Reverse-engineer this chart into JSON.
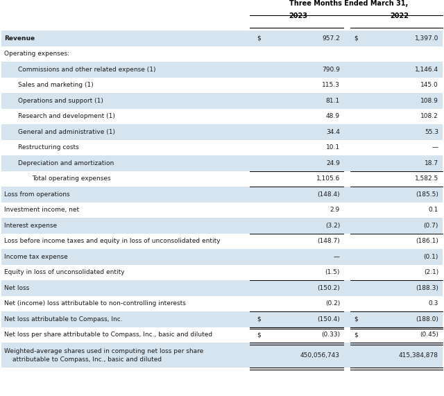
{
  "title": "Three Months Ended March 31,",
  "rows": [
    {
      "label": "Revenue",
      "val2023": "957.2",
      "val2022": "1,397.0",
      "indent": 0,
      "bold": true,
      "bg": "light",
      "dollar_sign": true,
      "bottom_border": false,
      "double_border": false,
      "single_border": false
    },
    {
      "label": "Operating expenses:",
      "val2023": "",
      "val2022": "",
      "indent": 0,
      "bold": false,
      "bg": "white",
      "dollar_sign": false,
      "bottom_border": false,
      "double_border": false,
      "single_border": false
    },
    {
      "label": "Commissions and other related expense (1)",
      "val2023": "790.9",
      "val2022": "1,146.4",
      "indent": 1,
      "bold": false,
      "bg": "light",
      "dollar_sign": false,
      "bottom_border": false,
      "double_border": false,
      "single_border": false
    },
    {
      "label": "Sales and marketing (1)",
      "val2023": "115.3",
      "val2022": "145.0",
      "indent": 1,
      "bold": false,
      "bg": "white",
      "dollar_sign": false,
      "bottom_border": false,
      "double_border": false,
      "single_border": false
    },
    {
      "label": "Operations and support (1)",
      "val2023": "81.1",
      "val2022": "108.9",
      "indent": 1,
      "bold": false,
      "bg": "light",
      "dollar_sign": false,
      "bottom_border": false,
      "double_border": false,
      "single_border": false
    },
    {
      "label": "Research and development (1)",
      "val2023": "48.9",
      "val2022": "108.2",
      "indent": 1,
      "bold": false,
      "bg": "white",
      "dollar_sign": false,
      "bottom_border": false,
      "double_border": false,
      "single_border": false
    },
    {
      "label": "General and administrative (1)",
      "val2023": "34.4",
      "val2022": "55.3",
      "indent": 1,
      "bold": false,
      "bg": "light",
      "dollar_sign": false,
      "bottom_border": false,
      "double_border": false,
      "single_border": false
    },
    {
      "label": "Restructuring costs",
      "val2023": "10.1",
      "val2022": "—",
      "indent": 1,
      "bold": false,
      "bg": "white",
      "dollar_sign": false,
      "bottom_border": false,
      "double_border": false,
      "single_border": false
    },
    {
      "label": "Depreciation and amortization",
      "val2023": "24.9",
      "val2022": "18.7",
      "indent": 1,
      "bold": false,
      "bg": "light",
      "dollar_sign": false,
      "bottom_border": true,
      "double_border": false,
      "single_border": false
    },
    {
      "label": "Total operating expenses",
      "val2023": "1,105.6",
      "val2022": "1,582.5",
      "indent": 2,
      "bold": false,
      "bg": "white",
      "dollar_sign": false,
      "bottom_border": true,
      "double_border": false,
      "single_border": false
    },
    {
      "label": "Loss from operations",
      "val2023": "(148.4)",
      "val2022": "(185.5)",
      "indent": 0,
      "bold": false,
      "bg": "light",
      "dollar_sign": false,
      "bottom_border": false,
      "double_border": false,
      "single_border": false
    },
    {
      "label": "Investment income, net",
      "val2023": "2.9",
      "val2022": "0.1",
      "indent": 0,
      "bold": false,
      "bg": "white",
      "dollar_sign": false,
      "bottom_border": false,
      "double_border": false,
      "single_border": false
    },
    {
      "label": "Interest expense",
      "val2023": "(3.2)",
      "val2022": "(0.7)",
      "indent": 0,
      "bold": false,
      "bg": "light",
      "dollar_sign": false,
      "bottom_border": true,
      "double_border": false,
      "single_border": false
    },
    {
      "label": "Loss before income taxes and equity in loss of unconsolidated entity",
      "val2023": "(148.7)",
      "val2022": "(186.1)",
      "indent": 0,
      "bold": false,
      "bg": "white",
      "dollar_sign": false,
      "bottom_border": false,
      "double_border": false,
      "single_border": false
    },
    {
      "label": "Income tax expense",
      "val2023": "—",
      "val2022": "(0.1)",
      "indent": 0,
      "bold": false,
      "bg": "light",
      "dollar_sign": false,
      "bottom_border": false,
      "double_border": false,
      "single_border": false
    },
    {
      "label": "Equity in loss of unconsolidated entity",
      "val2023": "(1.5)",
      "val2022": "(2.1)",
      "indent": 0,
      "bold": false,
      "bg": "white",
      "dollar_sign": false,
      "bottom_border": true,
      "double_border": false,
      "single_border": false
    },
    {
      "label": "Net loss",
      "val2023": "(150.2)",
      "val2022": "(188.3)",
      "indent": 0,
      "bold": false,
      "bg": "light",
      "dollar_sign": false,
      "bottom_border": false,
      "double_border": false,
      "single_border": false
    },
    {
      "label": "Net (income) loss attributable to non-controlling interests",
      "val2023": "(0.2)",
      "val2022": "0.3",
      "indent": 0,
      "bold": false,
      "bg": "white",
      "dollar_sign": false,
      "bottom_border": true,
      "double_border": false,
      "single_border": false
    },
    {
      "label": "Net loss attributable to Compass, Inc.",
      "val2023": "(150.4)",
      "val2022": "(188.0)",
      "indent": 0,
      "bold": false,
      "bg": "light",
      "dollar_sign": true,
      "bottom_border": false,
      "double_border": true,
      "single_border": false
    },
    {
      "label": "Net loss per share attributable to Compass, Inc., basic and diluted",
      "val2023": "(0.33)",
      "val2022": "(0.45)",
      "indent": 0,
      "bold": false,
      "bg": "white",
      "dollar_sign": true,
      "bottom_border": false,
      "double_border": true,
      "single_border": false
    },
    {
      "label": "Weighted-average shares used in computing net loss per share\n attributable to Compass, Inc., basic and diluted",
      "val2023": "450,056,743",
      "val2022": "415,384,878",
      "indent": 0,
      "bold": false,
      "bg": "light",
      "dollar_sign": false,
      "bottom_border": false,
      "double_border": true,
      "single_border": false,
      "multiline": true
    }
  ],
  "bg_light": "#d6e4f0",
  "bg_white": "#ffffff",
  "text_color": "#1a1a1a",
  "header_color": "#000000",
  "font_size": 6.5,
  "header_font_size": 7.0
}
